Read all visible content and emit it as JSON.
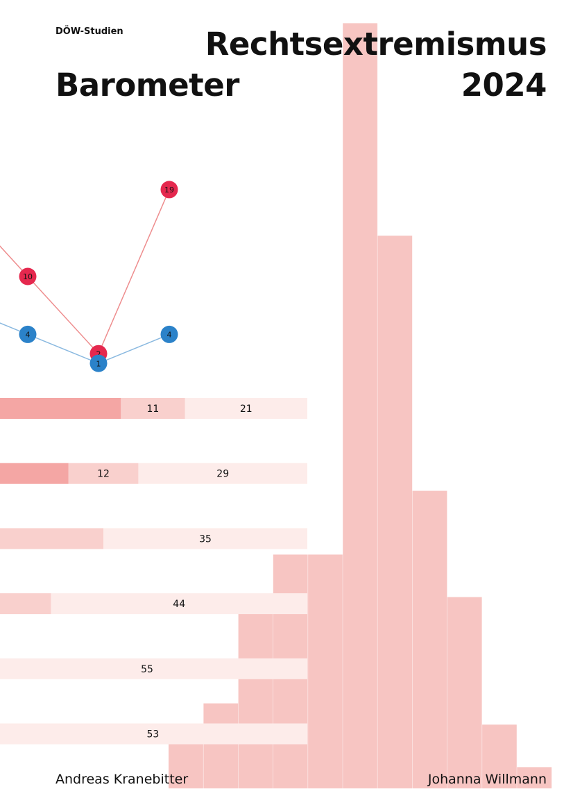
{
  "cover": {
    "series": "DÖW-Studien",
    "title_line1": "Rechtsextremismus",
    "title_line2_left": "Barometer",
    "title_line2_right": "2024",
    "author_left": "Andreas Kranebitter",
    "author_right": "Johanna Willmann"
  },
  "colors": {
    "hist": "#f7c5c2",
    "bar_dark": "#f4a6a4",
    "bar_mid": "#f9d0cd",
    "bar_light": "#fdecea",
    "dot_red": "#e5284e",
    "dot_blue": "#2b82c9",
    "line_red": "#ee8d8e",
    "line_blue": "#8ab9e0",
    "text": "#111111"
  },
  "chart_data": [
    {
      "type": "line",
      "x": [
        1,
        2,
        3
      ],
      "series": [
        {
          "values": [
            10,
            2,
            19
          ],
          "color": "#e5284e"
        },
        {
          "values": [
            4,
            1,
            4
          ],
          "color": "#2b82c9"
        }
      ]
    },
    {
      "type": "bar",
      "stacked": true,
      "rows": [
        {
          "values": [
            11,
            21
          ]
        },
        {
          "values": [
            12,
            29
          ]
        },
        {
          "values": [
            35
          ]
        },
        {
          "values": [
            44
          ]
        },
        {
          "values": [
            55
          ]
        },
        {
          "values": [
            53
          ]
        }
      ]
    },
    {
      "type": "bar",
      "histogram": true,
      "values": [
        3,
        4,
        9,
        11,
        11,
        36,
        26,
        14,
        9,
        3,
        1
      ]
    }
  ]
}
